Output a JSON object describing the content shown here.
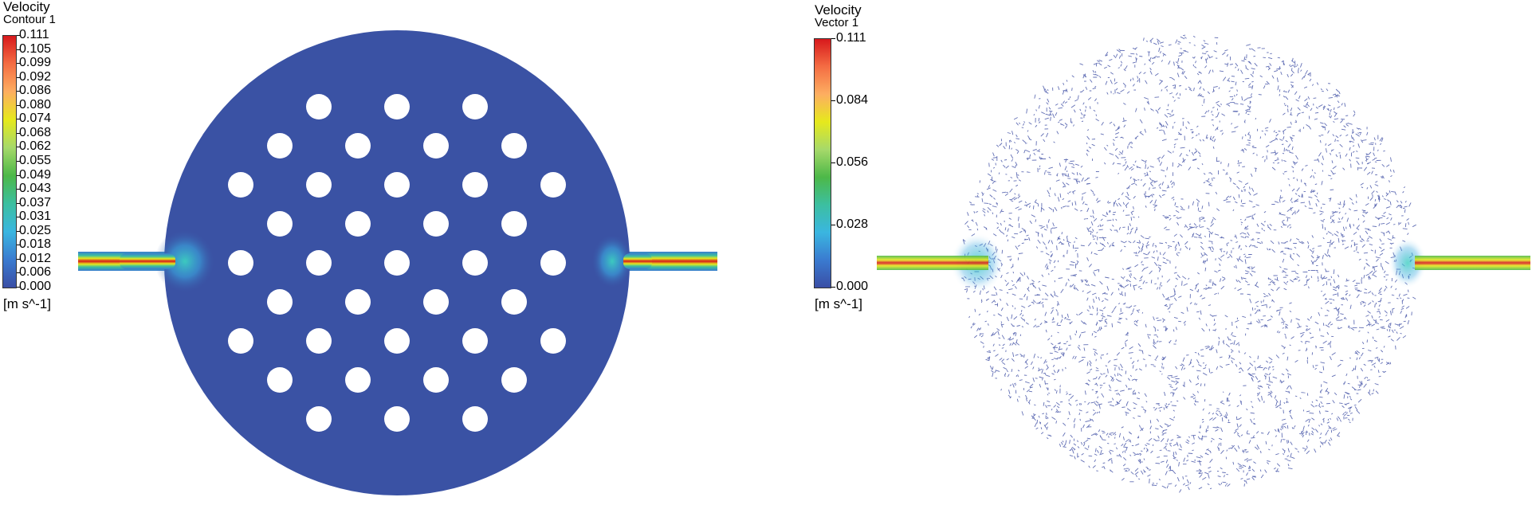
{
  "contour_panel": {
    "title": "Velocity",
    "subtitle": "Contour 1",
    "ticks": [
      "0.111",
      "0.105",
      "0.099",
      "0.092",
      "0.086",
      "0.080",
      "0.074",
      "0.068",
      "0.062",
      "0.055",
      "0.049",
      "0.043",
      "0.037",
      "0.031",
      "0.025",
      "0.018",
      "0.012",
      "0.006",
      "0.000"
    ],
    "unit": "[m s^-1]"
  },
  "vector_panel": {
    "title": "Velocity",
    "subtitle": "Vector 1",
    "ticks": [
      "0.111",
      "0.084",
      "0.056",
      "0.028",
      "0.000"
    ],
    "unit": "[m s^-1]"
  },
  "colormap": [
    "#d7191c",
    "#f46d43",
    "#fdae61",
    "#e6e91c",
    "#a6d96a",
    "#4db848",
    "#3cbfa0",
    "#3ab6e0",
    "#3a7bd0",
    "#3a4ea5"
  ],
  "colors": {
    "domain_fill": "#3a52a4",
    "hole_fill": "#ffffff",
    "vector_color": "#2d3f9c"
  },
  "geometry": {
    "hole_rows": [
      3,
      4,
      5,
      4,
      5,
      4,
      5,
      4,
      3
    ]
  }
}
